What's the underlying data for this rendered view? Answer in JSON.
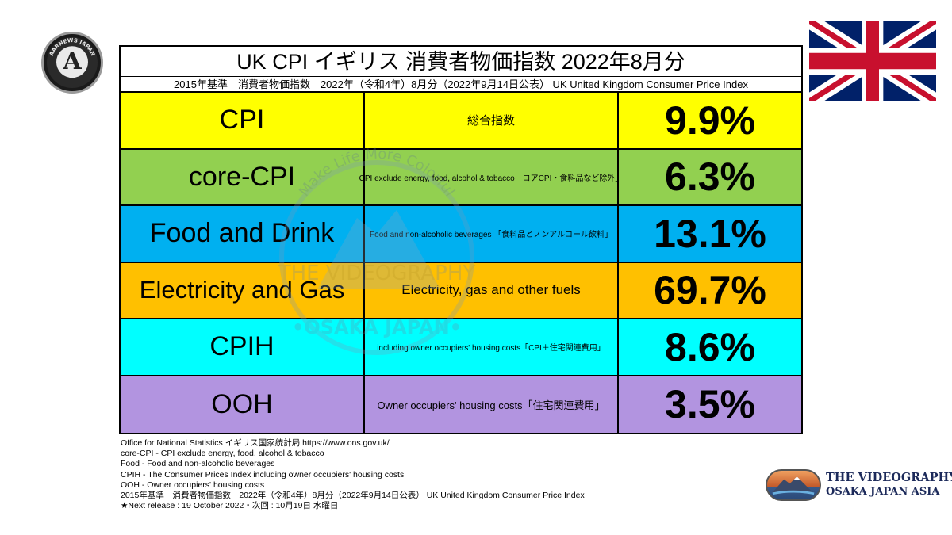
{
  "header": {
    "logo_text": "AARNEWS JAPAN",
    "logo_glyph": "A"
  },
  "table": {
    "title": "UK CPI イギリス 消費者物価指数 2022年8月分",
    "subtitle": "2015年基準　消費者物価指数　2022年（令和4年）8月分（2022年9月14日公表）  UK United Kingdom Consumer Price Index",
    "rows": [
      {
        "name": "CPI",
        "desc": "総合指数",
        "value": "9.9%",
        "color": "#ffff00"
      },
      {
        "name": "core-CPI",
        "desc": "CPI exclude energy, food, alcohol & tobacco「コアCPI・食料品など除外」",
        "value": "6.3%",
        "color": "#92d050"
      },
      {
        "name": "Food and Drink",
        "desc": "Food and non-alcoholic beverages 「食料品とノンアルコール飲料」",
        "value": "13.1%",
        "color": "#00b0f0"
      },
      {
        "name": "Electricity and Gas",
        "desc": "Electricity, gas and other fuels",
        "value": "69.7%",
        "color": "#ffc000"
      },
      {
        "name": "CPIH",
        "desc": "including owner occupiers' housing costs「CPI＋住宅関連費用」",
        "value": "8.6%",
        "color": "#00ffff"
      },
      {
        "name": "OOH",
        "desc": "Owner occupiers' housing costs「住宅関連費用」",
        "value": "3.5%",
        "color": "#b294e0"
      }
    ]
  },
  "notes": [
    "Office for National Statistics イギリス国家統計局 https://www.ons.gov.uk/",
    "core-CPI - CPI exclude energy, food, alcohol & tobacco",
    "Food - Food and non-alcoholic beverages",
    "CPIH - The Consumer Prices Index including owner occupiers' housing costs",
    "OOH - Owner occupiers' housing costs",
    "2015年基準　消費者物価指数　2022年（令和4年）8月分（2022年9月14日公表）  UK United Kingdom Consumer Price Index",
    "★Next release : 19 October 2022・次回 : 10月19日 水曜日"
  ],
  "brand": {
    "title": "THE VIDEOGRAPHY",
    "subtitle": "OSAKA JAPAN ASIA"
  },
  "watermark": {
    "line1": "Make Life More Colorful",
    "line2": "THE VIDEOGRAPHY",
    "line3": "•OSAKA JAPAN•"
  },
  "colors": {
    "flag_blue": "#012169",
    "flag_red": "#c8102e",
    "brand_navy": "#1c2a5a"
  }
}
